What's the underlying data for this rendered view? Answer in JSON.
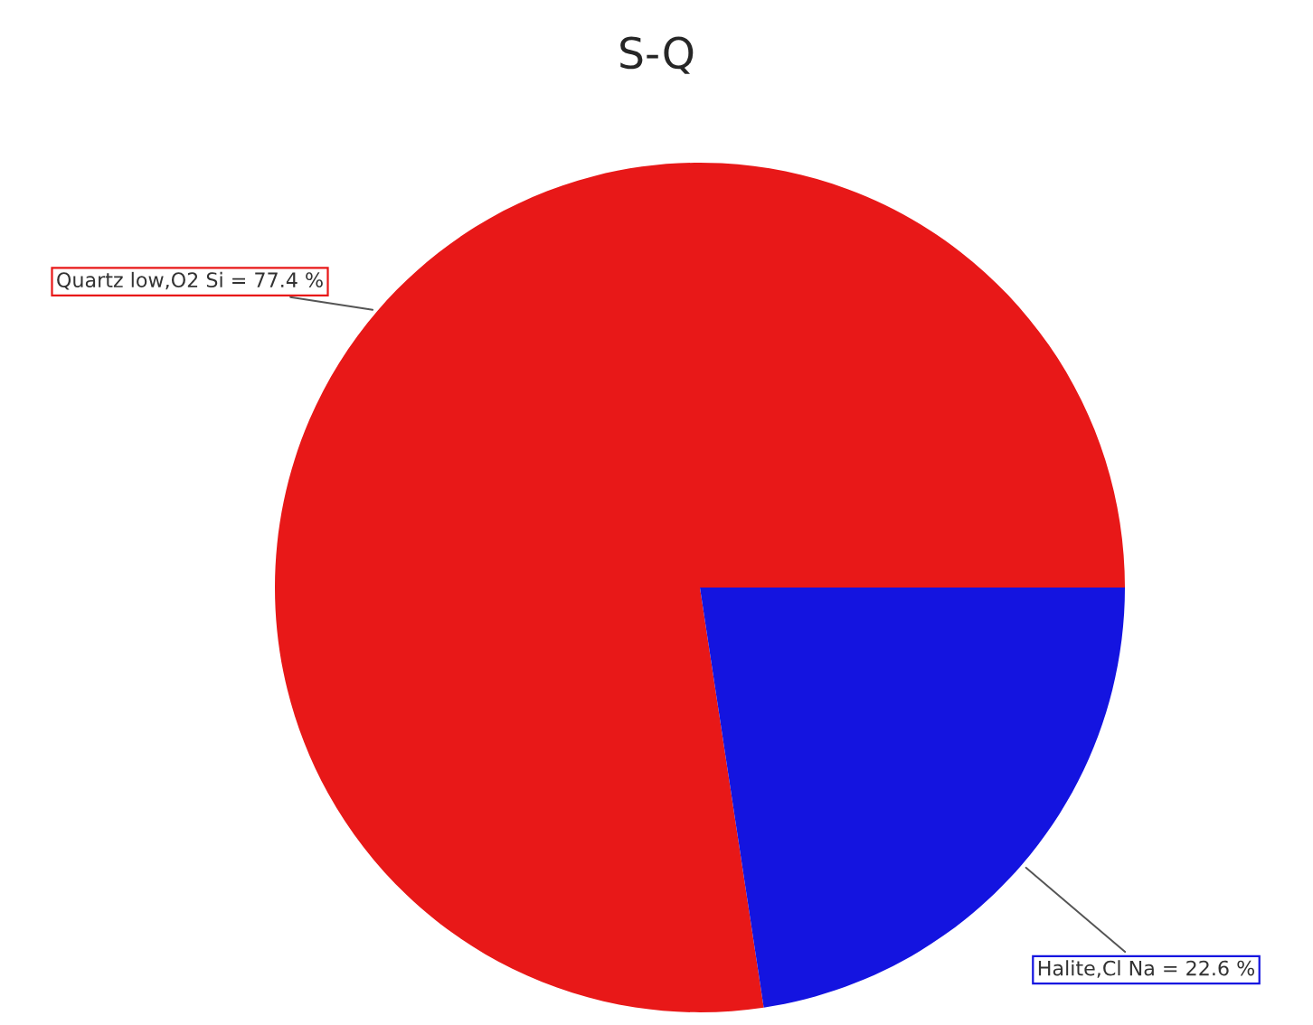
{
  "chart_data": {
    "type": "pie",
    "title": "S-Q",
    "categories": [
      null,
      null
    ],
    "values": [
      77.4,
      22.6
    ],
    "colors": [
      "#e81818",
      "#1414e0"
    ],
    "value_labels": [
      "Quartz low,O2 Si = 77.4 %",
      "Halite,Cl Na = 22.6 %"
    ],
    "legend": false
  }
}
